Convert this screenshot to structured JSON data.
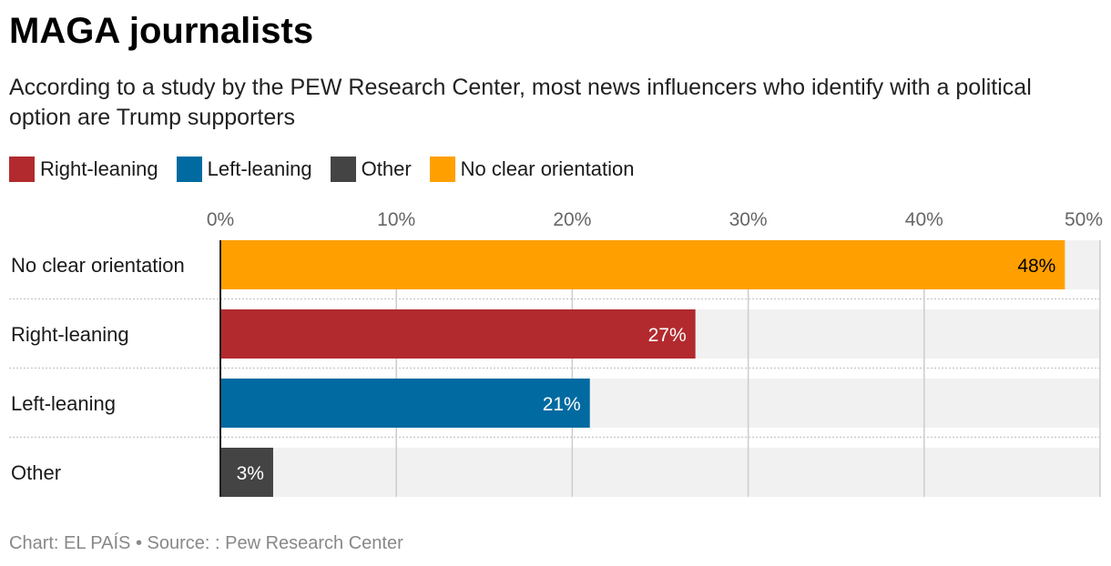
{
  "chart_data": {
    "type": "bar",
    "orientation": "horizontal",
    "title": "MAGA journalists",
    "subtitle": "According to a study by the PEW Research Center, most news influencers who identify with a political option are Trump supporters",
    "categories": [
      "No clear orientation",
      "Right-leaning",
      "Left-leaning",
      "Other"
    ],
    "values": [
      48,
      27,
      21,
      3
    ],
    "data_labels": [
      "48%",
      "27%",
      "21%",
      "3%"
    ],
    "colors": [
      "#ffa000",
      "#b22a2e",
      "#006aa1",
      "#444444"
    ],
    "label_colors": [
      "#000000",
      "#ffffff",
      "#ffffff",
      "#ffffff"
    ],
    "legend": [
      {
        "label": "Right-leaning",
        "color": "#b22a2e"
      },
      {
        "label": "Left-leaning",
        "color": "#006aa1"
      },
      {
        "label": "Other",
        "color": "#444444"
      },
      {
        "label": "No clear orientation",
        "color": "#ffa000"
      }
    ],
    "legend_position": "top-left",
    "xlim": [
      0,
      50
    ],
    "x_ticks": [
      0,
      10,
      20,
      30,
      40,
      50
    ],
    "x_tick_labels": [
      "0%",
      "10%",
      "20%",
      "30%",
      "40%",
      "50%"
    ],
    "grid": true
  },
  "footer": "Chart: EL PAÍS • Source: : Pew Research Center"
}
